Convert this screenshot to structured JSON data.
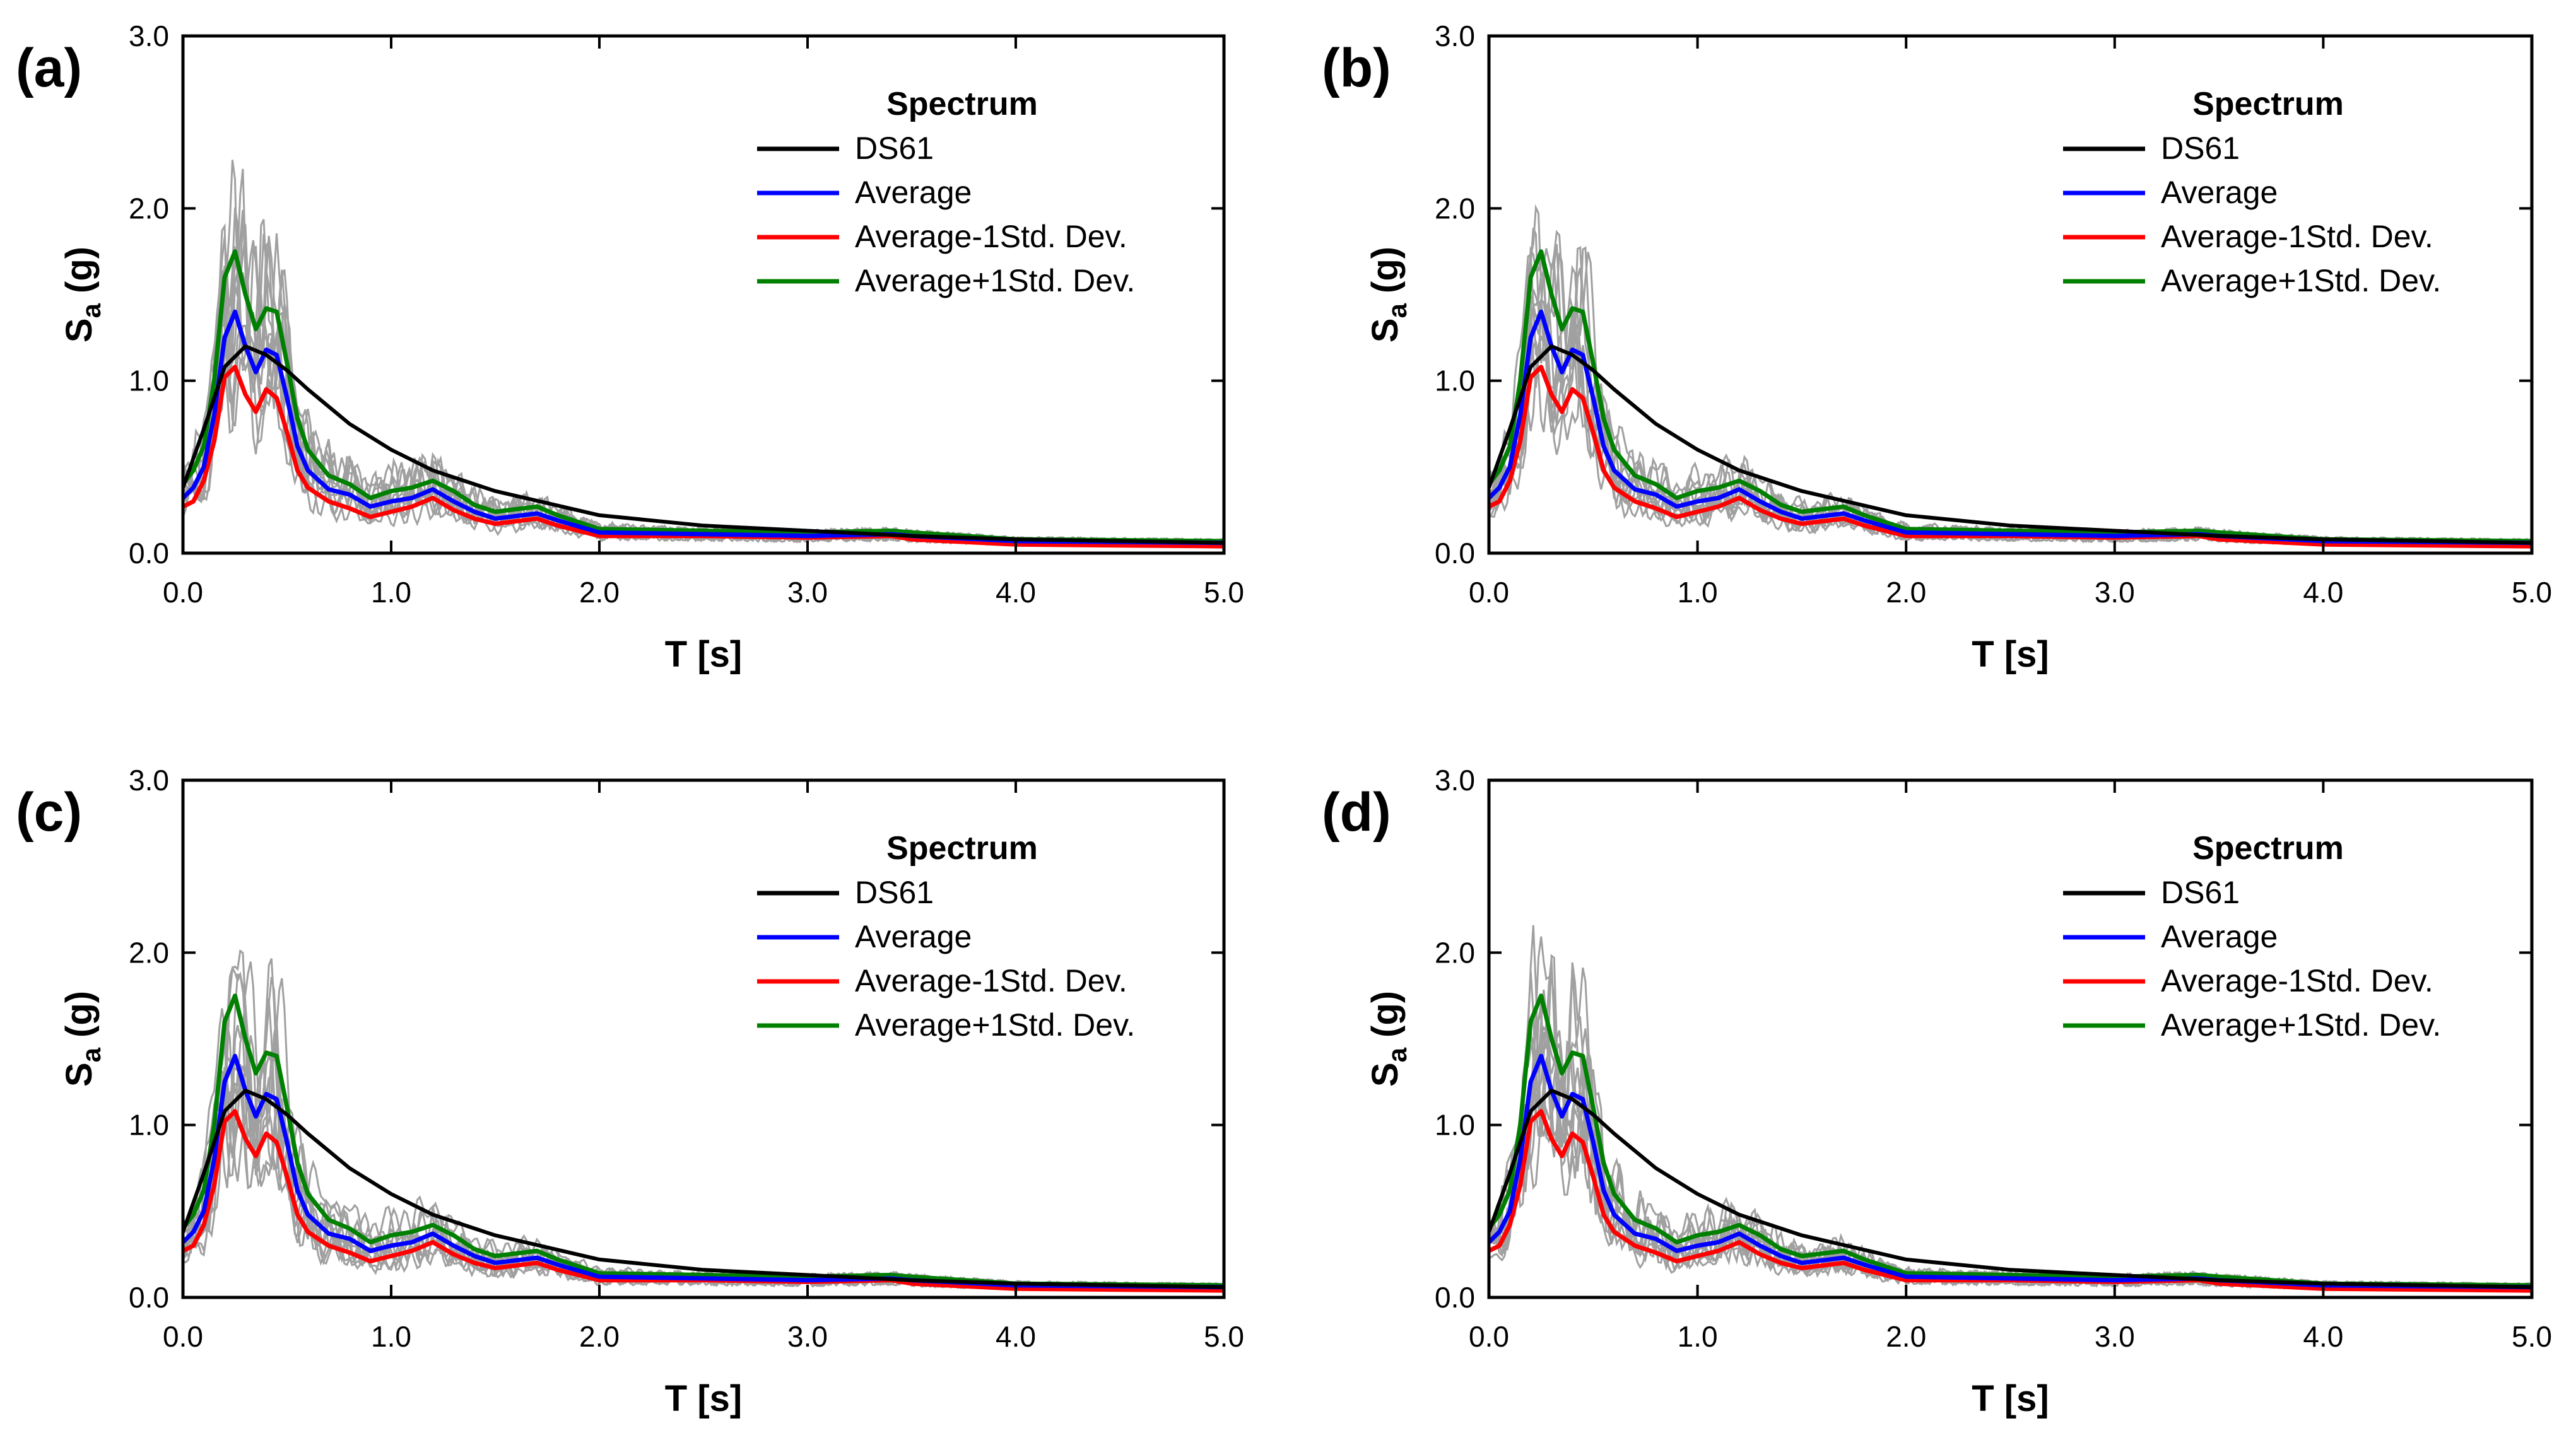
{
  "figure": {
    "legend_title": "Spectrum",
    "x_axis_title": "T [s]",
    "y_axis_title_main": "S",
    "y_axis_title_sub": "a",
    "y_axis_title_unit": " (g)",
    "x_ticks": [
      "0.0",
      "1.0",
      "2.0",
      "3.0",
      "4.0",
      "5.0"
    ],
    "y_ticks": [
      "0.0",
      "1.0",
      "2.0",
      "3.0"
    ],
    "colors": {
      "DS61": "#000000",
      "Average": "#0000ff",
      "Average-1Std. Dev.": "#ff0000",
      "Average+1Std. Dev.": "#008000",
      "records": "#a0a0a0"
    }
  },
  "chart_data": [
    {
      "panel": "(a)",
      "type": "line",
      "xlabel": "T [s]",
      "ylabel": "Sa (g)",
      "xlim": [
        0,
        5
      ],
      "ylim": [
        0,
        3
      ],
      "grid": false,
      "legend": {
        "title": "Spectrum",
        "placement": "top-right"
      },
      "series": [
        {
          "name": "DS61",
          "x": [
            0.0,
            0.05,
            0.1,
            0.15,
            0.2,
            0.3,
            0.4,
            0.5,
            0.6,
            0.8,
            1.0,
            1.2,
            1.5,
            2.0,
            2.5,
            3.0,
            3.5,
            4.0,
            4.5,
            5.0
          ],
          "y": [
            0.38,
            0.55,
            0.72,
            0.9,
            1.08,
            1.2,
            1.15,
            1.06,
            0.95,
            0.75,
            0.6,
            0.48,
            0.36,
            0.22,
            0.16,
            0.13,
            0.1,
            0.08,
            0.07,
            0.06
          ]
        },
        {
          "name": "Average",
          "x": [
            0.0,
            0.05,
            0.1,
            0.15,
            0.2,
            0.25,
            0.3,
            0.35,
            0.4,
            0.45,
            0.5,
            0.55,
            0.6,
            0.7,
            0.8,
            0.9,
            1.0,
            1.1,
            1.2,
            1.3,
            1.4,
            1.5,
            1.7,
            1.8,
            2.0,
            2.5,
            3.0,
            3.4,
            3.5,
            4.0,
            5.0
          ],
          "y": [
            0.32,
            0.38,
            0.5,
            0.8,
            1.25,
            1.4,
            1.2,
            1.05,
            1.18,
            1.15,
            0.9,
            0.62,
            0.48,
            0.37,
            0.34,
            0.27,
            0.3,
            0.32,
            0.37,
            0.3,
            0.24,
            0.2,
            0.23,
            0.19,
            0.12,
            0.11,
            0.1,
            0.11,
            0.1,
            0.07,
            0.06
          ]
        },
        {
          "name": "Average-1Std. Dev.",
          "x": [
            0.0,
            0.05,
            0.1,
            0.15,
            0.2,
            0.25,
            0.3,
            0.35,
            0.4,
            0.45,
            0.5,
            0.55,
            0.6,
            0.7,
            0.8,
            0.9,
            1.0,
            1.1,
            1.2,
            1.3,
            1.4,
            1.5,
            1.7,
            1.8,
            2.0,
            2.5,
            3.0,
            3.4,
            3.5,
            4.0,
            5.0
          ],
          "y": [
            0.27,
            0.3,
            0.42,
            0.65,
            1.02,
            1.08,
            0.92,
            0.82,
            0.95,
            0.9,
            0.7,
            0.48,
            0.38,
            0.3,
            0.26,
            0.21,
            0.24,
            0.27,
            0.32,
            0.25,
            0.2,
            0.17,
            0.2,
            0.16,
            0.1,
            0.1,
            0.09,
            0.1,
            0.08,
            0.05,
            0.04
          ]
        },
        {
          "name": "Average+1Std. Dev.",
          "x": [
            0.0,
            0.05,
            0.1,
            0.15,
            0.2,
            0.25,
            0.3,
            0.35,
            0.4,
            0.45,
            0.5,
            0.55,
            0.6,
            0.7,
            0.8,
            0.9,
            1.0,
            1.1,
            1.2,
            1.3,
            1.4,
            1.5,
            1.7,
            1.8,
            2.0,
            2.5,
            3.0,
            3.4,
            3.5,
            4.0,
            5.0
          ],
          "y": [
            0.4,
            0.48,
            0.62,
            1.0,
            1.6,
            1.75,
            1.5,
            1.3,
            1.42,
            1.4,
            1.1,
            0.78,
            0.6,
            0.45,
            0.4,
            0.32,
            0.36,
            0.38,
            0.42,
            0.36,
            0.28,
            0.24,
            0.27,
            0.22,
            0.14,
            0.13,
            0.12,
            0.13,
            0.12,
            0.08,
            0.07
          ]
        }
      ]
    },
    {
      "panel": "(b)",
      "type": "line",
      "xlabel": "T [s]",
      "ylabel": "Sa (g)",
      "xlim": [
        0,
        5
      ],
      "ylim": [
        0,
        3
      ],
      "grid": false,
      "legend": {
        "title": "Spectrum",
        "placement": "top-right"
      },
      "series": [
        {
          "name": "DS61",
          "x": [
            0.0,
            0.05,
            0.1,
            0.15,
            0.2,
            0.3,
            0.4,
            0.5,
            0.6,
            0.8,
            1.0,
            1.2,
            1.5,
            2.0,
            2.5,
            3.0,
            3.5,
            4.0,
            4.5,
            5.0
          ],
          "y": [
            0.38,
            0.55,
            0.72,
            0.9,
            1.08,
            1.2,
            1.15,
            1.06,
            0.95,
            0.75,
            0.6,
            0.48,
            0.36,
            0.22,
            0.16,
            0.13,
            0.1,
            0.08,
            0.07,
            0.06
          ]
        },
        {
          "name": "Average",
          "x": [
            0.0,
            0.05,
            0.1,
            0.15,
            0.2,
            0.25,
            0.3,
            0.35,
            0.4,
            0.45,
            0.5,
            0.55,
            0.6,
            0.7,
            0.8,
            0.9,
            1.0,
            1.1,
            1.2,
            1.3,
            1.4,
            1.5,
            1.7,
            1.8,
            2.0,
            2.5,
            3.0,
            3.4,
            3.5,
            4.0,
            5.0
          ],
          "y": [
            0.32,
            0.38,
            0.5,
            0.8,
            1.25,
            1.4,
            1.2,
            1.05,
            1.18,
            1.15,
            0.9,
            0.62,
            0.48,
            0.37,
            0.34,
            0.27,
            0.3,
            0.32,
            0.37,
            0.3,
            0.24,
            0.2,
            0.23,
            0.19,
            0.12,
            0.11,
            0.1,
            0.11,
            0.1,
            0.07,
            0.06
          ]
        },
        {
          "name": "Average-1Std. Dev.",
          "x": [
            0.0,
            0.05,
            0.1,
            0.15,
            0.2,
            0.25,
            0.3,
            0.35,
            0.4,
            0.45,
            0.5,
            0.55,
            0.6,
            0.7,
            0.8,
            0.9,
            1.0,
            1.1,
            1.2,
            1.3,
            1.4,
            1.5,
            1.7,
            1.8,
            2.0,
            2.5,
            3.0,
            3.4,
            3.5,
            4.0,
            5.0
          ],
          "y": [
            0.27,
            0.3,
            0.42,
            0.65,
            1.02,
            1.08,
            0.92,
            0.82,
            0.95,
            0.9,
            0.7,
            0.48,
            0.38,
            0.3,
            0.26,
            0.21,
            0.24,
            0.27,
            0.32,
            0.25,
            0.2,
            0.17,
            0.2,
            0.16,
            0.1,
            0.1,
            0.09,
            0.1,
            0.08,
            0.05,
            0.04
          ]
        },
        {
          "name": "Average+1Std. Dev.",
          "x": [
            0.0,
            0.05,
            0.1,
            0.15,
            0.2,
            0.25,
            0.3,
            0.35,
            0.4,
            0.45,
            0.5,
            0.55,
            0.6,
            0.7,
            0.8,
            0.9,
            1.0,
            1.1,
            1.2,
            1.3,
            1.4,
            1.5,
            1.7,
            1.8,
            2.0,
            2.5,
            3.0,
            3.4,
            3.5,
            4.0,
            5.0
          ],
          "y": [
            0.4,
            0.48,
            0.62,
            1.0,
            1.6,
            1.75,
            1.5,
            1.3,
            1.42,
            1.4,
            1.1,
            0.78,
            0.6,
            0.45,
            0.4,
            0.32,
            0.36,
            0.38,
            0.42,
            0.36,
            0.28,
            0.24,
            0.27,
            0.22,
            0.14,
            0.13,
            0.12,
            0.13,
            0.12,
            0.08,
            0.07
          ]
        }
      ]
    },
    {
      "panel": "(c)",
      "type": "line",
      "xlabel": "T [s]",
      "ylabel": "Sa (g)",
      "xlim": [
        0,
        5
      ],
      "ylim": [
        0,
        3
      ],
      "grid": false,
      "legend": {
        "title": "Spectrum",
        "placement": "top-right"
      },
      "series": [
        {
          "name": "DS61",
          "x": [
            0.0,
            0.05,
            0.1,
            0.15,
            0.2,
            0.3,
            0.4,
            0.5,
            0.6,
            0.8,
            1.0,
            1.2,
            1.5,
            2.0,
            2.5,
            3.0,
            3.5,
            4.0,
            4.5,
            5.0
          ],
          "y": [
            0.38,
            0.55,
            0.72,
            0.9,
            1.08,
            1.2,
            1.15,
            1.06,
            0.95,
            0.75,
            0.6,
            0.48,
            0.36,
            0.22,
            0.16,
            0.13,
            0.1,
            0.08,
            0.07,
            0.06
          ]
        },
        {
          "name": "Average",
          "x": [
            0.0,
            0.05,
            0.1,
            0.15,
            0.2,
            0.25,
            0.3,
            0.35,
            0.4,
            0.45,
            0.5,
            0.55,
            0.6,
            0.7,
            0.8,
            0.9,
            1.0,
            1.1,
            1.2,
            1.3,
            1.4,
            1.5,
            1.7,
            1.8,
            2.0,
            2.5,
            3.0,
            3.4,
            3.5,
            4.0,
            5.0
          ],
          "y": [
            0.32,
            0.38,
            0.5,
            0.8,
            1.25,
            1.4,
            1.2,
            1.05,
            1.18,
            1.15,
            0.9,
            0.62,
            0.48,
            0.37,
            0.34,
            0.27,
            0.3,
            0.32,
            0.37,
            0.3,
            0.24,
            0.2,
            0.23,
            0.19,
            0.12,
            0.11,
            0.1,
            0.11,
            0.1,
            0.07,
            0.06
          ]
        },
        {
          "name": "Average-1Std. Dev.",
          "x": [
            0.0,
            0.05,
            0.1,
            0.15,
            0.2,
            0.25,
            0.3,
            0.35,
            0.4,
            0.45,
            0.5,
            0.55,
            0.6,
            0.7,
            0.8,
            0.9,
            1.0,
            1.1,
            1.2,
            1.3,
            1.4,
            1.5,
            1.7,
            1.8,
            2.0,
            2.5,
            3.0,
            3.4,
            3.5,
            4.0,
            5.0
          ],
          "y": [
            0.27,
            0.3,
            0.42,
            0.65,
            1.02,
            1.08,
            0.92,
            0.82,
            0.95,
            0.9,
            0.7,
            0.48,
            0.38,
            0.3,
            0.26,
            0.21,
            0.24,
            0.27,
            0.32,
            0.25,
            0.2,
            0.17,
            0.2,
            0.16,
            0.1,
            0.1,
            0.09,
            0.1,
            0.08,
            0.05,
            0.04
          ]
        },
        {
          "name": "Average+1Std. Dev.",
          "x": [
            0.0,
            0.05,
            0.1,
            0.15,
            0.2,
            0.25,
            0.3,
            0.35,
            0.4,
            0.45,
            0.5,
            0.55,
            0.6,
            0.7,
            0.8,
            0.9,
            1.0,
            1.1,
            1.2,
            1.3,
            1.4,
            1.5,
            1.7,
            1.8,
            2.0,
            2.5,
            3.0,
            3.4,
            3.5,
            4.0,
            5.0
          ],
          "y": [
            0.4,
            0.48,
            0.62,
            1.0,
            1.6,
            1.75,
            1.5,
            1.3,
            1.42,
            1.4,
            1.1,
            0.78,
            0.6,
            0.45,
            0.4,
            0.32,
            0.36,
            0.38,
            0.42,
            0.36,
            0.28,
            0.24,
            0.27,
            0.22,
            0.14,
            0.13,
            0.12,
            0.13,
            0.12,
            0.08,
            0.07
          ]
        }
      ]
    },
    {
      "panel": "(d)",
      "type": "line",
      "xlabel": "T [s]",
      "ylabel": "Sa (g)",
      "xlim": [
        0,
        5
      ],
      "ylim": [
        0,
        3
      ],
      "grid": false,
      "legend": {
        "title": "Spectrum",
        "placement": "top-right"
      },
      "series": [
        {
          "name": "DS61",
          "x": [
            0.0,
            0.05,
            0.1,
            0.15,
            0.2,
            0.3,
            0.4,
            0.5,
            0.6,
            0.8,
            1.0,
            1.2,
            1.5,
            2.0,
            2.5,
            3.0,
            3.5,
            4.0,
            4.5,
            5.0
          ],
          "y": [
            0.38,
            0.55,
            0.72,
            0.9,
            1.08,
            1.2,
            1.15,
            1.06,
            0.95,
            0.75,
            0.6,
            0.48,
            0.36,
            0.22,
            0.16,
            0.13,
            0.1,
            0.08,
            0.07,
            0.06
          ]
        },
        {
          "name": "Average",
          "x": [
            0.0,
            0.05,
            0.1,
            0.15,
            0.2,
            0.25,
            0.3,
            0.35,
            0.4,
            0.45,
            0.5,
            0.55,
            0.6,
            0.7,
            0.8,
            0.9,
            1.0,
            1.1,
            1.2,
            1.3,
            1.4,
            1.5,
            1.7,
            1.8,
            2.0,
            2.5,
            3.0,
            3.4,
            3.5,
            4.0,
            5.0
          ],
          "y": [
            0.32,
            0.38,
            0.5,
            0.8,
            1.25,
            1.4,
            1.2,
            1.05,
            1.18,
            1.15,
            0.9,
            0.62,
            0.48,
            0.37,
            0.34,
            0.27,
            0.3,
            0.32,
            0.37,
            0.3,
            0.24,
            0.2,
            0.23,
            0.19,
            0.12,
            0.11,
            0.1,
            0.11,
            0.1,
            0.07,
            0.06
          ]
        },
        {
          "name": "Average-1Std. Dev.",
          "x": [
            0.0,
            0.05,
            0.1,
            0.15,
            0.2,
            0.25,
            0.3,
            0.35,
            0.4,
            0.45,
            0.5,
            0.55,
            0.6,
            0.7,
            0.8,
            0.9,
            1.0,
            1.1,
            1.2,
            1.3,
            1.4,
            1.5,
            1.7,
            1.8,
            2.0,
            2.5,
            3.0,
            3.4,
            3.5,
            4.0,
            5.0
          ],
          "y": [
            0.27,
            0.3,
            0.42,
            0.65,
            1.02,
            1.08,
            0.92,
            0.82,
            0.95,
            0.9,
            0.7,
            0.48,
            0.38,
            0.3,
            0.26,
            0.21,
            0.24,
            0.27,
            0.32,
            0.25,
            0.2,
            0.17,
            0.2,
            0.16,
            0.1,
            0.1,
            0.09,
            0.1,
            0.08,
            0.05,
            0.04
          ]
        },
        {
          "name": "Average+1Std. Dev.",
          "x": [
            0.0,
            0.05,
            0.1,
            0.15,
            0.2,
            0.25,
            0.3,
            0.35,
            0.4,
            0.45,
            0.5,
            0.55,
            0.6,
            0.7,
            0.8,
            0.9,
            1.0,
            1.1,
            1.2,
            1.3,
            1.4,
            1.5,
            1.7,
            1.8,
            2.0,
            2.5,
            3.0,
            3.4,
            3.5,
            4.0,
            5.0
          ],
          "y": [
            0.4,
            0.48,
            0.62,
            1.0,
            1.6,
            1.75,
            1.5,
            1.3,
            1.42,
            1.4,
            1.1,
            0.78,
            0.6,
            0.45,
            0.4,
            0.32,
            0.36,
            0.38,
            0.42,
            0.36,
            0.28,
            0.24,
            0.27,
            0.22,
            0.14,
            0.13,
            0.12,
            0.13,
            0.12,
            0.08,
            0.07
          ]
        }
      ]
    }
  ]
}
